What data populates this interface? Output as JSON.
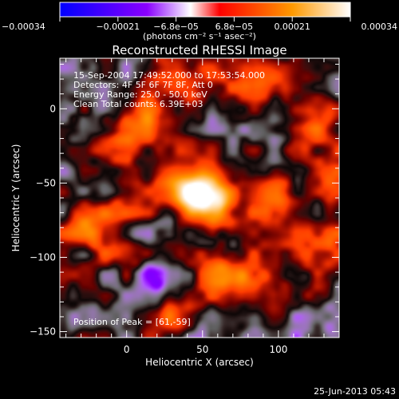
{
  "chart_data": {
    "type": "heatmap",
    "title": "Reconstructed RHESSI Image",
    "xlabel": "Heliocentric X (arcsec)",
    "ylabel": "Heliocentric Y (arcsec)",
    "xlim": [
      -44,
      140
    ],
    "ylim": [
      -154,
      34
    ],
    "x_ticks": [
      0,
      50,
      100
    ],
    "x_tick_labels": [
      "0",
      "50",
      "100"
    ],
    "y_ticks": [
      0,
      -50,
      -100,
      -150
    ],
    "y_tick_labels": [
      "0",
      "−50",
      "−100",
      "−150"
    ],
    "colorbar": {
      "range": [
        -0.00034,
        0.00034
      ],
      "tick_labels": [
        "−0.00034",
        "−0.00021",
        "−6.8e−05",
        "6.8e−05",
        "0.00021",
        "0.00034"
      ],
      "unit": "(photons cm⁻² s⁻¹ asec⁻²)",
      "colors": [
        "#0000ff",
        "#8a00ff",
        "#ffffff",
        "#ff0000",
        "#ff9900",
        "#ffffff"
      ]
    },
    "annotations": {
      "time": "15-Sep-2004 17:49:52.000 to 17:53:54.000",
      "detectors": "Detectors: 4F 5F 6F 7F 8F, Att 0",
      "energy": "Energy Range: 25.0 - 50.0 keV",
      "clean": "Clean     Total counts: 6.39E+03",
      "peak": "Position of Peak = [61,-59]"
    },
    "peak": {
      "x": 61,
      "y": -59,
      "value": 0.00034
    },
    "blobs": [
      {
        "x": 52,
        "y": -60,
        "sx": 12,
        "sy": 9,
        "v": 1.0
      },
      {
        "x": 40,
        "y": -50,
        "sx": 14,
        "sy": 10,
        "v": 0.45
      },
      {
        "x": 65,
        "y": -75,
        "sx": 10,
        "sy": 8,
        "v": 0.35
      },
      {
        "x": 10,
        "y": -10,
        "sx": 18,
        "sy": 14,
        "v": 0.4
      },
      {
        "x": 45,
        "y": 15,
        "sx": 15,
        "sy": 10,
        "v": 0.3
      },
      {
        "x": 90,
        "y": 20,
        "sx": 12,
        "sy": 10,
        "v": 0.35
      },
      {
        "x": 120,
        "y": -10,
        "sx": 14,
        "sy": 12,
        "v": 0.35
      },
      {
        "x": 100,
        "y": -60,
        "sx": 12,
        "sy": 14,
        "v": 0.4
      },
      {
        "x": 125,
        "y": -95,
        "sx": 12,
        "sy": 12,
        "v": 0.35
      },
      {
        "x": 80,
        "y": -120,
        "sx": 14,
        "sy": 12,
        "v": 0.38
      },
      {
        "x": 30,
        "y": -140,
        "sx": 12,
        "sy": 8,
        "v": 0.42
      },
      {
        "x": -20,
        "y": -80,
        "sx": 16,
        "sy": 14,
        "v": 0.4
      },
      {
        "x": 60,
        "y": -110,
        "sx": 10,
        "sy": 10,
        "v": 0.3
      },
      {
        "x": 25,
        "y": 30,
        "sx": 10,
        "sy": 8,
        "v": 0.35
      },
      {
        "x": 135,
        "y": -50,
        "sx": 8,
        "sy": 14,
        "v": 0.35
      },
      {
        "x": -30,
        "y": 5,
        "sx": 10,
        "sy": 14,
        "v": -0.2
      },
      {
        "x": 20,
        "y": -110,
        "sx": 8,
        "sy": 10,
        "v": -0.3
      },
      {
        "x": -30,
        "y": -55,
        "sx": 12,
        "sy": 10,
        "v": -0.15
      },
      {
        "x": 100,
        "y": -150,
        "sx": 14,
        "sy": 8,
        "v": -0.12
      },
      {
        "x": 130,
        "y": -140,
        "sx": 10,
        "sy": 12,
        "v": -0.18
      },
      {
        "x": 85,
        "y": -30,
        "sx": 10,
        "sy": 10,
        "v": -0.1
      },
      {
        "x": 60,
        "y": -5,
        "sx": 10,
        "sy": 10,
        "v": -0.08
      }
    ]
  },
  "footer": {
    "date": "25-Jun-2013 05:43"
  }
}
